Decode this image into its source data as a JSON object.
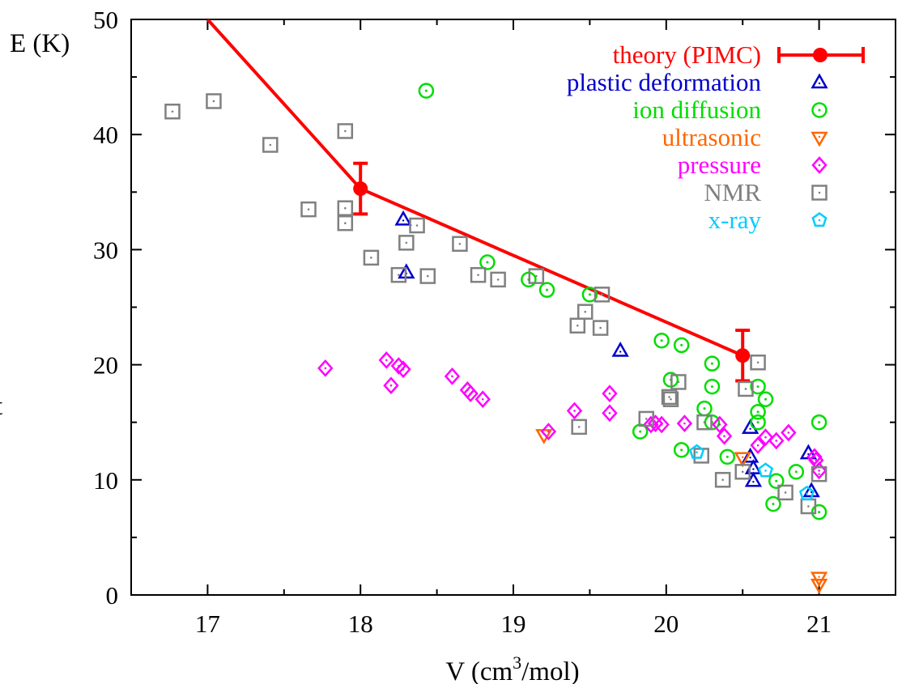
{
  "chart_data": {
    "type": "scatter",
    "xlabel": {
      "pre": "V (cm",
      "sup": "3",
      "post": "/mol)"
    },
    "ylabel": "E (K)",
    "xlim": [
      16.5,
      21.5
    ],
    "ylim": [
      0,
      50
    ],
    "xticks": [
      17,
      18,
      19,
      20,
      21
    ],
    "yticks": [
      0,
      10,
      20,
      30,
      40,
      50
    ],
    "grid": false,
    "legend_position": "top-right",
    "left_edge_text": "t",
    "series": [
      {
        "name": "theory (PIMC)",
        "kind": "line-errorbar",
        "color": "#ff0000",
        "line": [
          [
            17.0,
            50.0
          ],
          [
            18.0,
            35.3
          ],
          [
            20.5,
            20.8
          ]
        ],
        "points": [
          {
            "x": 18.0,
            "y": 35.3,
            "err": 2.2
          },
          {
            "x": 20.5,
            "y": 20.8,
            "err": 2.2
          }
        ]
      },
      {
        "name": "plastic deformation",
        "kind": "triangle",
        "color": "#0000cc",
        "points": [
          [
            18.28,
            32.6
          ],
          [
            18.3,
            28.0
          ],
          [
            19.7,
            21.2
          ],
          [
            20.55,
            14.5
          ],
          [
            20.55,
            12.0
          ],
          [
            20.57,
            11.0
          ],
          [
            20.57,
            9.9
          ],
          [
            20.93,
            12.3
          ],
          [
            20.95,
            9.0
          ]
        ]
      },
      {
        "name": "ion diffusion",
        "kind": "circle",
        "color": "#00dd00",
        "points": [
          [
            18.43,
            43.8
          ],
          [
            18.83,
            28.9
          ],
          [
            19.1,
            27.4
          ],
          [
            19.22,
            26.5
          ],
          [
            19.5,
            26.1
          ],
          [
            19.97,
            22.1
          ],
          [
            20.1,
            21.7
          ],
          [
            20.03,
            18.7
          ],
          [
            20.3,
            20.1
          ],
          [
            20.3,
            18.1
          ],
          [
            20.25,
            16.2
          ],
          [
            20.3,
            15.0
          ],
          [
            19.83,
            14.2
          ],
          [
            20.1,
            12.6
          ],
          [
            20.4,
            12.0
          ],
          [
            20.6,
            18.1
          ],
          [
            20.6,
            15.9
          ],
          [
            20.6,
            15.0
          ],
          [
            20.65,
            17.0
          ],
          [
            20.7,
            7.9
          ],
          [
            20.72,
            9.9
          ],
          [
            20.85,
            10.7
          ],
          [
            21.0,
            15.0
          ],
          [
            21.0,
            7.2
          ]
        ]
      },
      {
        "name": "ultrasonic",
        "kind": "triangle-down",
        "color": "#ff6600",
        "points": [
          [
            19.2,
            13.9
          ],
          [
            20.5,
            11.9
          ],
          [
            21.0,
            1.5
          ],
          [
            21.0,
            0.9
          ]
        ]
      },
      {
        "name": "pressure",
        "kind": "diamond",
        "color": "#ff00ff",
        "points": [
          [
            17.77,
            19.7
          ],
          [
            18.17,
            20.4
          ],
          [
            18.2,
            18.2
          ],
          [
            18.25,
            19.9
          ],
          [
            18.28,
            19.6
          ],
          [
            18.6,
            19.0
          ],
          [
            18.7,
            17.8
          ],
          [
            18.72,
            17.5
          ],
          [
            18.8,
            17.0
          ],
          [
            19.23,
            14.2
          ],
          [
            19.4,
            16.0
          ],
          [
            19.63,
            17.5
          ],
          [
            19.63,
            15.8
          ],
          [
            19.9,
            14.8
          ],
          [
            19.93,
            14.9
          ],
          [
            19.97,
            14.8
          ],
          [
            20.12,
            14.9
          ],
          [
            20.35,
            14.8
          ],
          [
            20.38,
            13.8
          ],
          [
            20.6,
            13.0
          ],
          [
            20.65,
            13.7
          ],
          [
            20.72,
            13.4
          ],
          [
            20.8,
            14.1
          ],
          [
            20.97,
            12.0
          ],
          [
            20.98,
            11.7
          ],
          [
            21.0,
            10.8
          ]
        ]
      },
      {
        "name": "NMR",
        "kind": "square-dot",
        "color": "#808080",
        "points": [
          [
            16.77,
            42.0
          ],
          [
            17.04,
            42.9
          ],
          [
            17.41,
            39.1
          ],
          [
            17.66,
            33.5
          ],
          [
            17.9,
            40.3
          ],
          [
            17.9,
            33.6
          ],
          [
            17.9,
            32.3
          ],
          [
            18.07,
            29.3
          ],
          [
            18.25,
            27.8
          ],
          [
            18.3,
            30.6
          ],
          [
            18.37,
            32.1
          ],
          [
            18.44,
            27.7
          ],
          [
            18.65,
            30.5
          ],
          [
            18.77,
            27.8
          ],
          [
            18.9,
            27.4
          ],
          [
            19.15,
            27.7
          ],
          [
            19.42,
            23.4
          ],
          [
            19.47,
            24.6
          ],
          [
            19.57,
            23.2
          ],
          [
            19.58,
            26.1
          ],
          [
            19.43,
            14.6
          ],
          [
            19.87,
            15.3
          ],
          [
            20.02,
            17.2
          ],
          [
            20.03,
            17.0
          ],
          [
            20.08,
            18.5
          ],
          [
            20.23,
            12.1
          ],
          [
            20.25,
            15.0
          ],
          [
            20.37,
            10.0
          ],
          [
            20.52,
            17.9
          ],
          [
            20.5,
            10.7
          ],
          [
            20.6,
            20.2
          ],
          [
            20.78,
            8.9
          ],
          [
            20.93,
            7.7
          ],
          [
            21.0,
            10.5
          ]
        ]
      },
      {
        "name": "x-ray",
        "kind": "pentagon",
        "color": "#00ccff",
        "points": [
          [
            20.2,
            12.4
          ],
          [
            20.65,
            10.8
          ],
          [
            20.92,
            8.8
          ]
        ]
      }
    ]
  }
}
